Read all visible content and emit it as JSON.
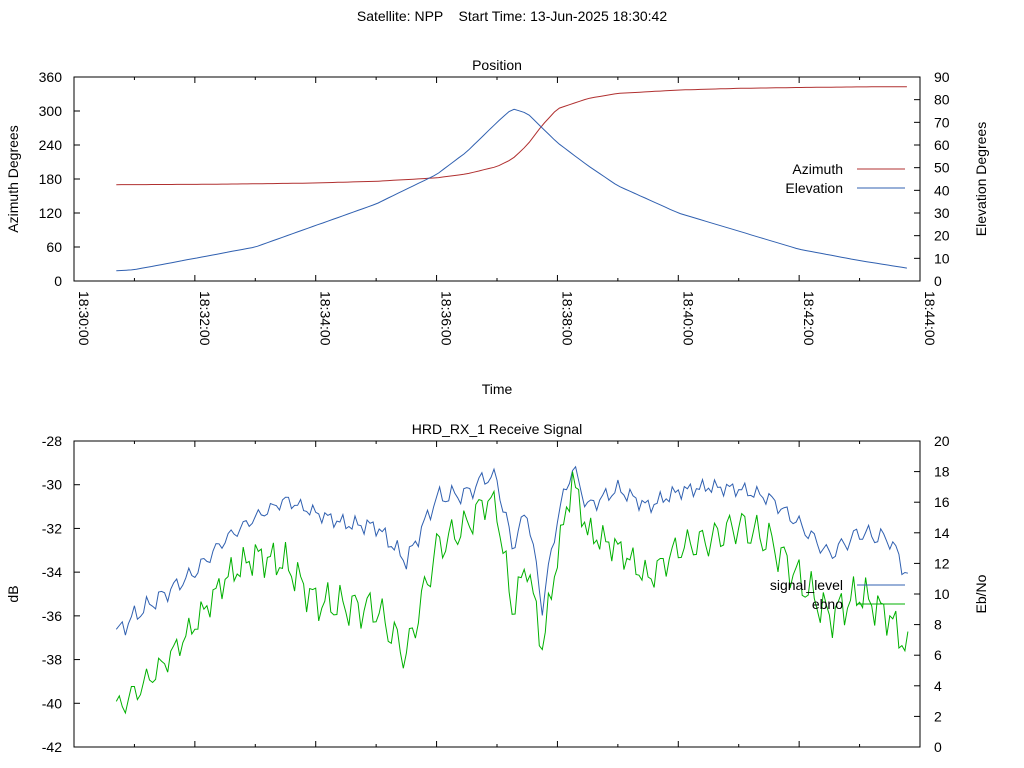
{
  "header": {
    "title": "Satellite: NPP    Start Time: 13-Jun-2025 18:30:42"
  },
  "chart_data": [
    {
      "type": "line",
      "title": "Position",
      "xlabel": "Time",
      "ylabel": "Azimuth Degrees",
      "y2label": "Elevation Degrees",
      "xlim": [
        "18:30:00",
        "18:44:00"
      ],
      "ylim": [
        0,
        360
      ],
      "y2lim": [
        0,
        90
      ],
      "x_ticks": [
        "18:30:00",
        "18:32:00",
        "18:34:00",
        "18:36:00",
        "18:38:00",
        "18:40:00",
        "18:42:00",
        "18:44:00"
      ],
      "y_ticks": [
        "0",
        "60",
        "120",
        "180",
        "240",
        "300",
        "360"
      ],
      "y2_ticks": [
        "0",
        "10",
        "20",
        "30",
        "40",
        "50",
        "60",
        "70",
        "80",
        "90"
      ],
      "legend_position": "right",
      "grid": false,
      "series": [
        {
          "name": "Azimuth",
          "axis": "y",
          "color": "#b03030",
          "x": [
            "18:30:42",
            "18:32:00",
            "18:33:00",
            "18:34:00",
            "18:35:00",
            "18:36:00",
            "18:36:30",
            "18:37:00",
            "18:37:15",
            "18:37:30",
            "18:37:45",
            "18:38:00",
            "18:38:30",
            "18:39:00",
            "18:40:00",
            "18:41:00",
            "18:42:00",
            "18:43:00",
            "18:43:50"
          ],
          "values": [
            170,
            170.5,
            171.5,
            173,
            176,
            182,
            189,
            202,
            215,
            240,
            275,
            304,
            322,
            331,
            337,
            340,
            341.5,
            342.5,
            343
          ]
        },
        {
          "name": "Elevation",
          "axis": "y2",
          "color": "#3060b0",
          "x": [
            "18:30:42",
            "18:31:00",
            "18:32:00",
            "18:33:00",
            "18:34:00",
            "18:35:00",
            "18:36:00",
            "18:36:30",
            "18:37:00",
            "18:37:15",
            "18:37:30",
            "18:38:00",
            "18:38:30",
            "18:39:00",
            "18:40:00",
            "18:41:00",
            "18:42:00",
            "18:43:00",
            "18:43:50"
          ],
          "values": [
            4.5,
            5,
            10,
            15,
            24.5,
            34,
            47,
            57,
            70,
            76,
            74,
            61,
            51,
            42,
            30,
            22,
            14,
            9,
            5.5
          ]
        }
      ]
    },
    {
      "type": "line",
      "title": "HRD_RX_1 Receive Signal",
      "xlabel": "",
      "ylabel": "dB",
      "y2label": "Eb/No",
      "xlim": [
        "18:30:00",
        "18:44:00"
      ],
      "ylim": [
        -42,
        -28
      ],
      "y2lim": [
        0,
        20
      ],
      "y_ticks": [
        "-42",
        "-40",
        "-38",
        "-36",
        "-34",
        "-32",
        "-30",
        "-28"
      ],
      "y2_ticks": [
        "0",
        "2",
        "4",
        "6",
        "8",
        "10",
        "12",
        "14",
        "16",
        "18",
        "20"
      ],
      "legend_position": "right",
      "grid": false,
      "series": [
        {
          "name": "signal_level",
          "axis": "y",
          "color": "#3060b0",
          "x": [
            "18:30:42",
            "18:31:00",
            "18:31:30",
            "18:32:00",
            "18:32:30",
            "18:33:00",
            "18:33:30",
            "18:34:00",
            "18:34:30",
            "18:35:00",
            "18:35:30",
            "18:36:00",
            "18:36:30",
            "18:36:50",
            "18:37:00",
            "18:37:15",
            "18:37:30",
            "18:37:45",
            "18:38:00",
            "18:38:15",
            "18:38:30",
            "18:39:00",
            "18:39:30",
            "18:40:00",
            "18:40:30",
            "18:41:00",
            "18:41:30",
            "18:42:00",
            "18:42:30",
            "18:43:00",
            "18:43:30",
            "18:43:50"
          ],
          "values": [
            -36.8,
            -36,
            -35,
            -34,
            -32.5,
            -31.5,
            -30.7,
            -31.3,
            -31.8,
            -31.9,
            -33.5,
            -30.6,
            -30.4,
            -29.6,
            -29.8,
            -32.8,
            -31.2,
            -35.6,
            -31.5,
            -29.2,
            -31,
            -30.2,
            -31,
            -30.3,
            -30.1,
            -30.2,
            -30.6,
            -31.8,
            -33.2,
            -32.2,
            -32.5,
            -34.4
          ]
        },
        {
          "name": "ebno",
          "axis": "y2",
          "color": "#00b000",
          "x": [
            "18:30:42",
            "18:31:00",
            "18:31:30",
            "18:32:00",
            "18:32:30",
            "18:33:00",
            "18:33:30",
            "18:34:00",
            "18:34:30",
            "18:35:00",
            "18:35:30",
            "18:36:00",
            "18:36:30",
            "18:36:50",
            "18:37:00",
            "18:37:15",
            "18:37:30",
            "18:37:45",
            "18:38:00",
            "18:38:15",
            "18:38:30",
            "18:39:00",
            "18:39:30",
            "18:40:00",
            "18:40:30",
            "18:41:00",
            "18:41:30",
            "18:42:00",
            "18:42:30",
            "18:43:00",
            "18:43:30",
            "18:43:50"
          ],
          "values": [
            2.5,
            3.5,
            5.5,
            8,
            11,
            12.5,
            12,
            9.5,
            9.2,
            9,
            6,
            13,
            14.5,
            16.2,
            15.5,
            9,
            12,
            6.5,
            12.5,
            17.5,
            14,
            13,
            11,
            13,
            13.5,
            14.5,
            13.5,
            11,
            8.5,
            10,
            8.5,
            6
          ]
        }
      ]
    }
  ]
}
